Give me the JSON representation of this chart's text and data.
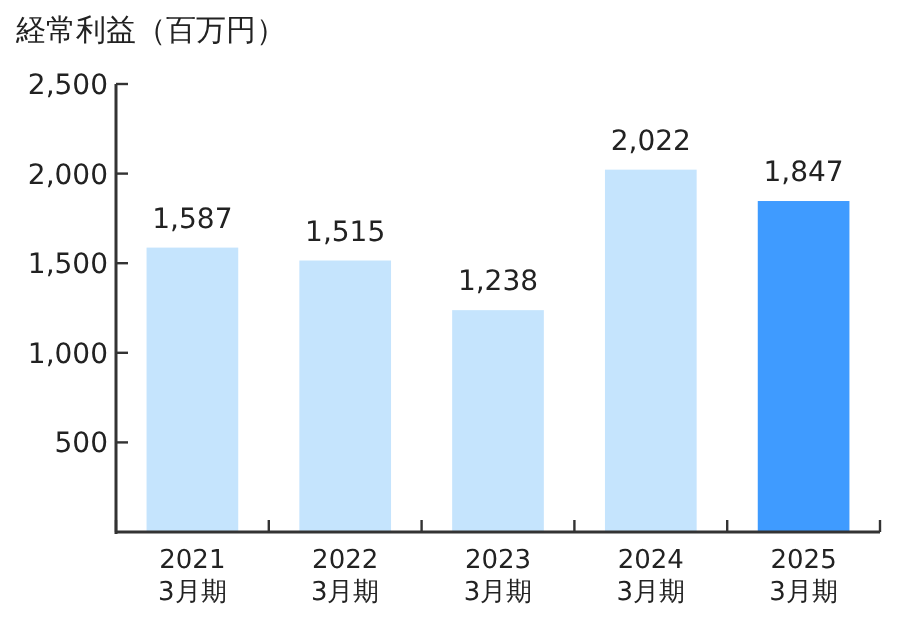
{
  "chart_data": {
    "type": "bar",
    "title": "経常利益（百万円）",
    "categories": [
      "2021\n3月期",
      "2022\n3月期",
      "2023\n3月期",
      "2024\n3月期",
      "2025\n3月期"
    ],
    "values": [
      1587,
      1515,
      1238,
      2022,
      1847
    ],
    "colors": [
      "#c5e4fd",
      "#c5e4fd",
      "#c5e4fd",
      "#c5e4fd",
      "#3f9bff"
    ],
    "ylim": [
      0,
      2500
    ],
    "yticks": [
      500,
      {
        "value": 1000,
        "label": "1,000"
      },
      {
        "value": 1500,
        "label": "1,500"
      },
      {
        "value": 2000,
        "label": "2,000"
      },
      {
        "value": 2500,
        "label": "2,500"
      }
    ],
    "value_labels": [
      "1,587",
      "1,515",
      "1,238",
      "2,022",
      "1,847"
    ],
    "grid": false
  }
}
